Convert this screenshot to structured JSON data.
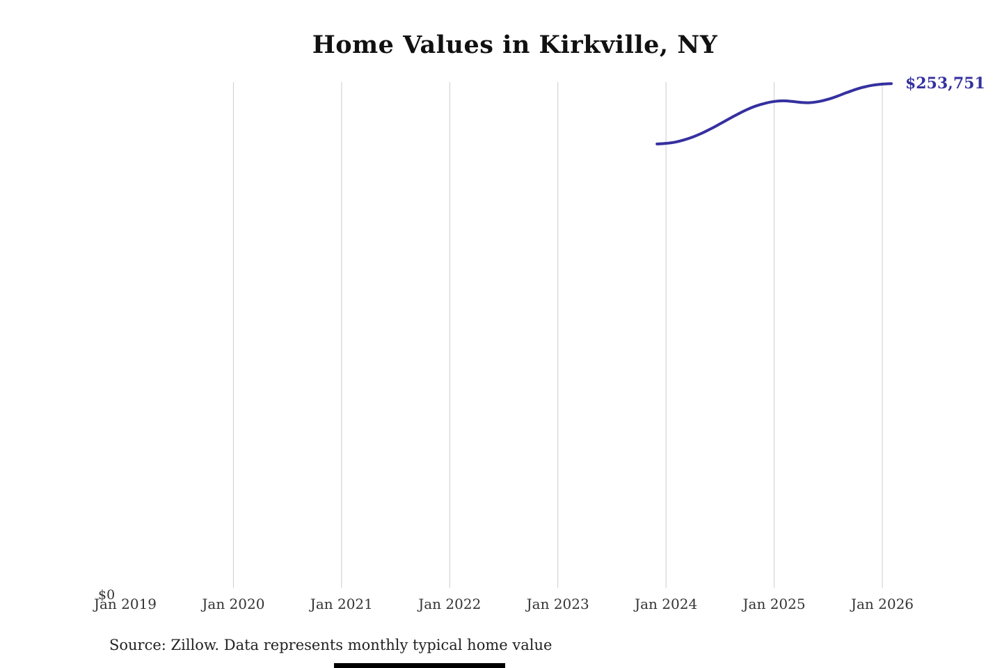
{
  "page": {
    "title": "Home Values in Kirkville, NY",
    "source_note": "Source: Zillow. Data represents monthly typical home value"
  },
  "colors": {
    "line": "#35309f",
    "end_label": "#35309f",
    "gridline": "#cccccc",
    "tick_text": "#333333"
  },
  "chart_data": {
    "type": "line",
    "title": "Home Values in Kirkville, NY",
    "x_tick_labels": [
      "Jan 2019",
      "Jan 2020",
      "Jan 2021",
      "Jan 2022",
      "Jan 2023",
      "Jan 2024",
      "Jan 2025",
      "Jan 2026"
    ],
    "y_zero_label": "$0",
    "end_value_label": "$253,751",
    "ylim": [
      0,
      254500
    ],
    "x_range": [
      "Jan 2019",
      "Jan 2026"
    ],
    "grid": "vertical-only",
    "legend": "none",
    "series": [
      {
        "name": "Monthly typical home value",
        "x": [
          "2023-12",
          "2024-01",
          "2024-02",
          "2024-03",
          "2024-04",
          "2024-05",
          "2024-06",
          "2024-07",
          "2024-08",
          "2024-09",
          "2024-10",
          "2024-11",
          "2024-12",
          "2025-01",
          "2025-02",
          "2025-03",
          "2025-04",
          "2025-05",
          "2025-06",
          "2025-07",
          "2025-08",
          "2025-09",
          "2025-10",
          "2025-11",
          "2025-12",
          "2026-01",
          "2026-02"
        ],
        "values": [
          223800,
          224100,
          224700,
          225800,
          227300,
          229200,
          231400,
          233800,
          236300,
          238700,
          240900,
          242700,
          244000,
          244900,
          245200,
          244900,
          244400,
          244300,
          244900,
          246000,
          247500,
          249200,
          250800,
          252100,
          253000,
          253500,
          253751
        ]
      }
    ]
  }
}
